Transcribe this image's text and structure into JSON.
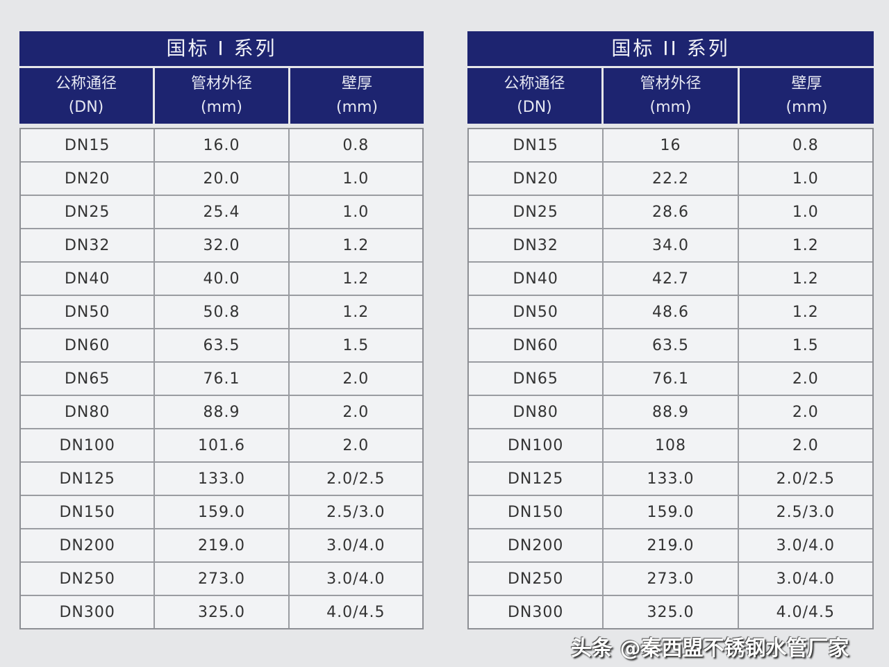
{
  "tables": [
    {
      "title": "国标 I 系列",
      "headers": [
        {
          "l1": "公称通径",
          "l2": "(DN)"
        },
        {
          "l1": "管材外径",
          "l2": "(mm)"
        },
        {
          "l1": "壁厚",
          "l2": "(mm)"
        }
      ],
      "rows": [
        [
          "DN15",
          "16.0",
          "0.8"
        ],
        [
          "DN20",
          "20.0",
          "1.0"
        ],
        [
          "DN25",
          "25.4",
          "1.0"
        ],
        [
          "DN32",
          "32.0",
          "1.2"
        ],
        [
          "DN40",
          "40.0",
          "1.2"
        ],
        [
          "DN50",
          "50.8",
          "1.2"
        ],
        [
          "DN60",
          "63.5",
          "1.5"
        ],
        [
          "DN65",
          "76.1",
          "2.0"
        ],
        [
          "DN80",
          "88.9",
          "2.0"
        ],
        [
          "DN100",
          "101.6",
          "2.0"
        ],
        [
          "DN125",
          "133.0",
          "2.0/2.5"
        ],
        [
          "DN150",
          "159.0",
          "2.5/3.0"
        ],
        [
          "DN200",
          "219.0",
          "3.0/4.0"
        ],
        [
          "DN250",
          "273.0",
          "3.0/4.0"
        ],
        [
          "DN300",
          "325.0",
          "4.0/4.5"
        ]
      ]
    },
    {
      "title": "国标 II 系列",
      "headers": [
        {
          "l1": "公称通径",
          "l2": "(DN)"
        },
        {
          "l1": "管材外径",
          "l2": "(mm)"
        },
        {
          "l1": "壁厚",
          "l2": "(mm)"
        }
      ],
      "rows": [
        [
          "DN15",
          "16",
          "0.8"
        ],
        [
          "DN20",
          "22.2",
          "1.0"
        ],
        [
          "DN25",
          "28.6",
          "1.0"
        ],
        [
          "DN32",
          "34.0",
          "1.2"
        ],
        [
          "DN40",
          "42.7",
          "1.2"
        ],
        [
          "DN50",
          "48.6",
          "1.2"
        ],
        [
          "DN60",
          "63.5",
          "1.5"
        ],
        [
          "DN65",
          "76.1",
          "2.0"
        ],
        [
          "DN80",
          "88.9",
          "2.0"
        ],
        [
          "DN100",
          "108",
          "2.0"
        ],
        [
          "DN125",
          "133.0",
          "2.0/2.5"
        ],
        [
          "DN150",
          "159.0",
          "2.5/3.0"
        ],
        [
          "DN200",
          "219.0",
          "3.0/4.0"
        ],
        [
          "DN250",
          "273.0",
          "3.0/4.0"
        ],
        [
          "DN300",
          "325.0",
          "4.0/4.5"
        ]
      ]
    }
  ],
  "watermark": "头条 @秦西盟不锈钢水管厂家",
  "colors": {
    "header_bg": "#1d2470",
    "page_bg": "#e6e7e9"
  }
}
